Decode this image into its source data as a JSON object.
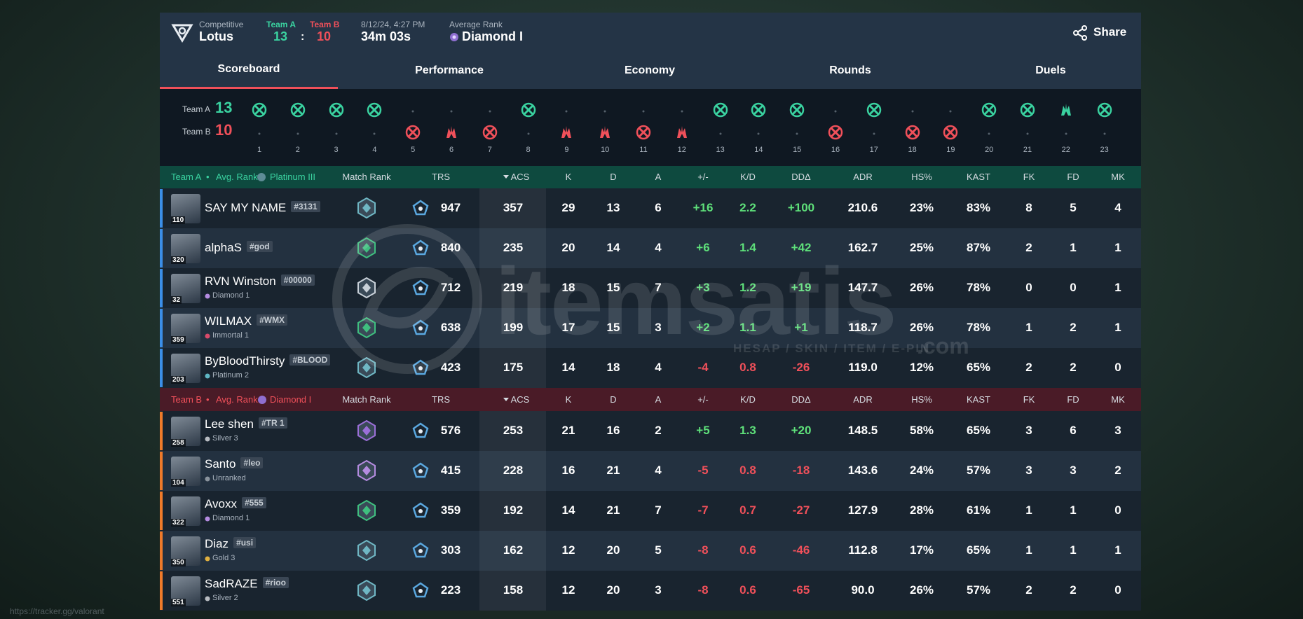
{
  "header": {
    "mode": "Competitive",
    "map": "Lotus",
    "team_a": "Team A",
    "team_a_score": 13,
    "separator": ":",
    "team_b": "Team B",
    "team_b_score": 10,
    "date": "8/12/24, 4:27 PM",
    "duration": "34m 03s",
    "avg_rank_label": "Average Rank",
    "avg_rank": "Diamond I",
    "share": "Share"
  },
  "tabs": [
    "Scoreboard",
    "Performance",
    "Economy",
    "Rounds",
    "Duels"
  ],
  "active_tab": 0,
  "rounds": {
    "team_a": "Team A",
    "team_a_score": 13,
    "team_b": "Team B",
    "team_b_score": 10,
    "list": [
      {
        "number": 1,
        "winner": "A",
        "icon": "elimination"
      },
      {
        "number": 2,
        "winner": "A",
        "icon": "elimination"
      },
      {
        "number": 3,
        "winner": "A",
        "icon": "elimination"
      },
      {
        "number": 4,
        "winner": "A",
        "icon": "elimination"
      },
      {
        "number": 5,
        "winner": "B",
        "icon": "elimination"
      },
      {
        "number": 6,
        "winner": "B",
        "icon": "spike"
      },
      {
        "number": 7,
        "winner": "B",
        "icon": "elimination"
      },
      {
        "number": 8,
        "winner": "A",
        "icon": "elimination"
      },
      {
        "number": 9,
        "winner": "B",
        "icon": "spike"
      },
      {
        "number": 10,
        "winner": "B",
        "icon": "spike"
      },
      {
        "number": 11,
        "winner": "B",
        "icon": "elimination"
      },
      {
        "number": 12,
        "winner": "B",
        "icon": "spike"
      },
      {
        "number": 13,
        "winner": "A",
        "icon": "elimination"
      },
      {
        "number": 14,
        "winner": "A",
        "icon": "elimination"
      },
      {
        "number": 15,
        "winner": "A",
        "icon": "elimination"
      },
      {
        "number": 16,
        "winner": "B",
        "icon": "elimination"
      },
      {
        "number": 17,
        "winner": "A",
        "icon": "elimination"
      },
      {
        "number": 18,
        "winner": "B",
        "icon": "elimination"
      },
      {
        "number": 19,
        "winner": "B",
        "icon": "elimination"
      },
      {
        "number": 20,
        "winner": "A",
        "icon": "elimination"
      },
      {
        "number": 21,
        "winner": "A",
        "icon": "elimination"
      },
      {
        "number": 22,
        "winner": "A",
        "icon": "spike"
      },
      {
        "number": 23,
        "winner": "A",
        "icon": "elimination"
      }
    ]
  },
  "teams": [
    {
      "name": "Team A",
      "separator": "•",
      "avg_rank_label": "Avg. Rank:",
      "avg_rank": "Platinum III",
      "color": "#3ad2a0",
      "header_bg": "#0e4a3f",
      "bar_color": "#3b8ee8",
      "columns": [
        "Match Rank",
        "TRS",
        "ACS",
        "K",
        "D",
        "A",
        "+/-",
        "K/D",
        "DDΔ",
        "ADR",
        "HS%",
        "KAST",
        "FK",
        "FD",
        "MK"
      ],
      "players": [
        {
          "name": "SAY MY NAME",
          "tag": "#3131",
          "level": 110,
          "match_rank_color": "#6fb7c4",
          "trs": 947,
          "acs": 357,
          "k": 29,
          "d": 13,
          "a": 6,
          "pm": "+16",
          "kd": 2.2,
          "ddd": "+100",
          "adr": "210.6",
          "hs": "23%",
          "kast": "83%",
          "fk": 8,
          "fd": 5,
          "mk": 4
        },
        {
          "name": "alphaS",
          "tag": "#god",
          "level": 320,
          "match_rank_color": "#3fbf7f",
          "trs": 840,
          "acs": 235,
          "k": 20,
          "d": 14,
          "a": 4,
          "pm": "+6",
          "kd": 1.4,
          "ddd": "+42",
          "adr": "162.7",
          "hs": "25%",
          "kast": "87%",
          "fk": 2,
          "fd": 1,
          "mk": 1
        },
        {
          "name": "RVN Winston",
          "tag": "#00000",
          "level": 32,
          "rank": "Diamond 1",
          "rank_color": "#b48be0",
          "match_rank_color": "#c8d0d8",
          "trs": 712,
          "acs": 219,
          "k": 18,
          "d": 15,
          "a": 7,
          "pm": "+3",
          "kd": 1.2,
          "ddd": "+19",
          "adr": "147.7",
          "hs": "26%",
          "kast": "78%",
          "fk": 0,
          "fd": 0,
          "mk": 1
        },
        {
          "name": "WILMAX",
          "tag": "#WMX",
          "level": 359,
          "rank": "Immortal 1",
          "rank_color": "#d84a6a",
          "match_rank_color": "#3fbf7f",
          "trs": 638,
          "acs": 199,
          "k": 17,
          "d": 15,
          "a": 3,
          "pm": "+2",
          "kd": 1.1,
          "ddd": "+1",
          "adr": "118.7",
          "hs": "26%",
          "kast": "78%",
          "fk": 1,
          "fd": 2,
          "mk": 1
        },
        {
          "name": "ByBloodThirsty",
          "tag": "#BLOOD",
          "level": 203,
          "rank": "Platinum 2",
          "rank_color": "#5fb7c4",
          "match_rank_color": "#6fb7c4",
          "trs": 423,
          "acs": 175,
          "k": 14,
          "d": 18,
          "a": 4,
          "pm": "-4",
          "kd": 0.8,
          "ddd": "-26",
          "adr": "119.0",
          "hs": "12%",
          "kast": "65%",
          "fk": 2,
          "fd": 2,
          "mk": 0
        }
      ]
    },
    {
      "name": "Team B",
      "separator": "•",
      "avg_rank_label": "Avg. Rank:",
      "avg_rank": "Diamond I",
      "color": "#f0505a",
      "header_bg": "#4a1b27",
      "bar_color": "#f07a2a",
      "columns": [
        "Match Rank",
        "TRS",
        "ACS",
        "K",
        "D",
        "A",
        "+/-",
        "K/D",
        "DDΔ",
        "ADR",
        "HS%",
        "KAST",
        "FK",
        "FD",
        "MK"
      ],
      "players": [
        {
          "name": "Lee shen",
          "tag": "#TR 1",
          "level": 258,
          "rank": "Silver 3",
          "rank_color": "#b8bcc2",
          "match_rank_color": "#9b6fd8",
          "trs": 576,
          "acs": 253,
          "k": 21,
          "d": 16,
          "a": 2,
          "pm": "+5",
          "kd": 1.3,
          "ddd": "+20",
          "adr": "148.5",
          "hs": "58%",
          "kast": "65%",
          "fk": 3,
          "fd": 6,
          "mk": 3
        },
        {
          "name": "Santo",
          "tag": "#leo",
          "level": 104,
          "rank": "Unranked",
          "rank_color": "#8a939c",
          "match_rank_color": "#b48be0",
          "trs": 415,
          "acs": 228,
          "k": 16,
          "d": 21,
          "a": 4,
          "pm": "-5",
          "kd": 0.8,
          "ddd": "-18",
          "adr": "143.6",
          "hs": "24%",
          "kast": "57%",
          "fk": 3,
          "fd": 3,
          "mk": 2
        },
        {
          "name": "Avoxx",
          "tag": "#555",
          "level": 322,
          "rank": "Diamond 1",
          "rank_color": "#b48be0",
          "match_rank_color": "#3fbf7f",
          "trs": 359,
          "acs": 192,
          "k": 14,
          "d": 21,
          "a": 7,
          "pm": "-7",
          "kd": 0.7,
          "ddd": "-27",
          "adr": "127.9",
          "hs": "28%",
          "kast": "61%",
          "fk": 1,
          "fd": 1,
          "mk": 0
        },
        {
          "name": "Diaz",
          "tag": "#usi",
          "level": 350,
          "rank": "Gold 3",
          "rank_color": "#e0b040",
          "match_rank_color": "#6fb7c4",
          "trs": 303,
          "acs": 162,
          "k": 12,
          "d": 20,
          "a": 5,
          "pm": "-8",
          "kd": 0.6,
          "ddd": "-46",
          "adr": "112.8",
          "hs": "17%",
          "kast": "65%",
          "fk": 1,
          "fd": 1,
          "mk": 1
        },
        {
          "name": "SadRAZE",
          "tag": "#rioo",
          "level": 551,
          "rank": "Silver 2",
          "rank_color": "#b8bcc2",
          "match_rank_color": "#6fb7c4",
          "trs": 223,
          "acs": 158,
          "k": 12,
          "d": 20,
          "a": 3,
          "pm": "-8",
          "kd": 0.6,
          "ddd": "-65",
          "adr": "90.0",
          "hs": "26%",
          "kast": "57%",
          "fk": 2,
          "fd": 2,
          "mk": 0
        }
      ]
    }
  ],
  "watermark": {
    "brand": "itemsatis",
    "tagline": "HESAP / SKIN / ITEM / E-PIN",
    "domain": ".com"
  },
  "footer_url": "https://tracker.gg/valorant"
}
